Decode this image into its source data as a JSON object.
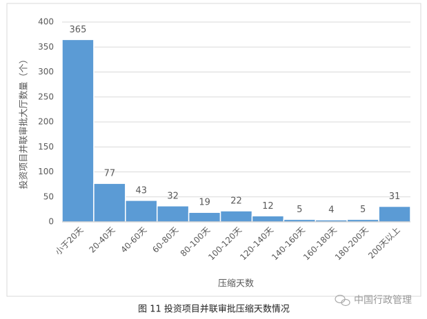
{
  "chart_data": {
    "type": "bar",
    "title": "图 11  投资项目并联审批压缩天数情况",
    "x_label": "压缩天数",
    "y_label": "投资项目并联审批大厅数量（个）",
    "categories": [
      "小于20天",
      "20-40天",
      "40-60天",
      "60-80天",
      "80-100天",
      "100-120天",
      "120-140天",
      "140-160天",
      "160-180天",
      "180-200天",
      "200天以上"
    ],
    "values": [
      365,
      77,
      43,
      32,
      19,
      22,
      12,
      5,
      4,
      5,
      31
    ],
    "color": "#5b9bd5",
    "ylim": [
      0,
      400
    ],
    "yticks": [
      0,
      50,
      100,
      150,
      200,
      250,
      300,
      350,
      400
    ],
    "grid": true,
    "watermark": "中国行政管理"
  }
}
